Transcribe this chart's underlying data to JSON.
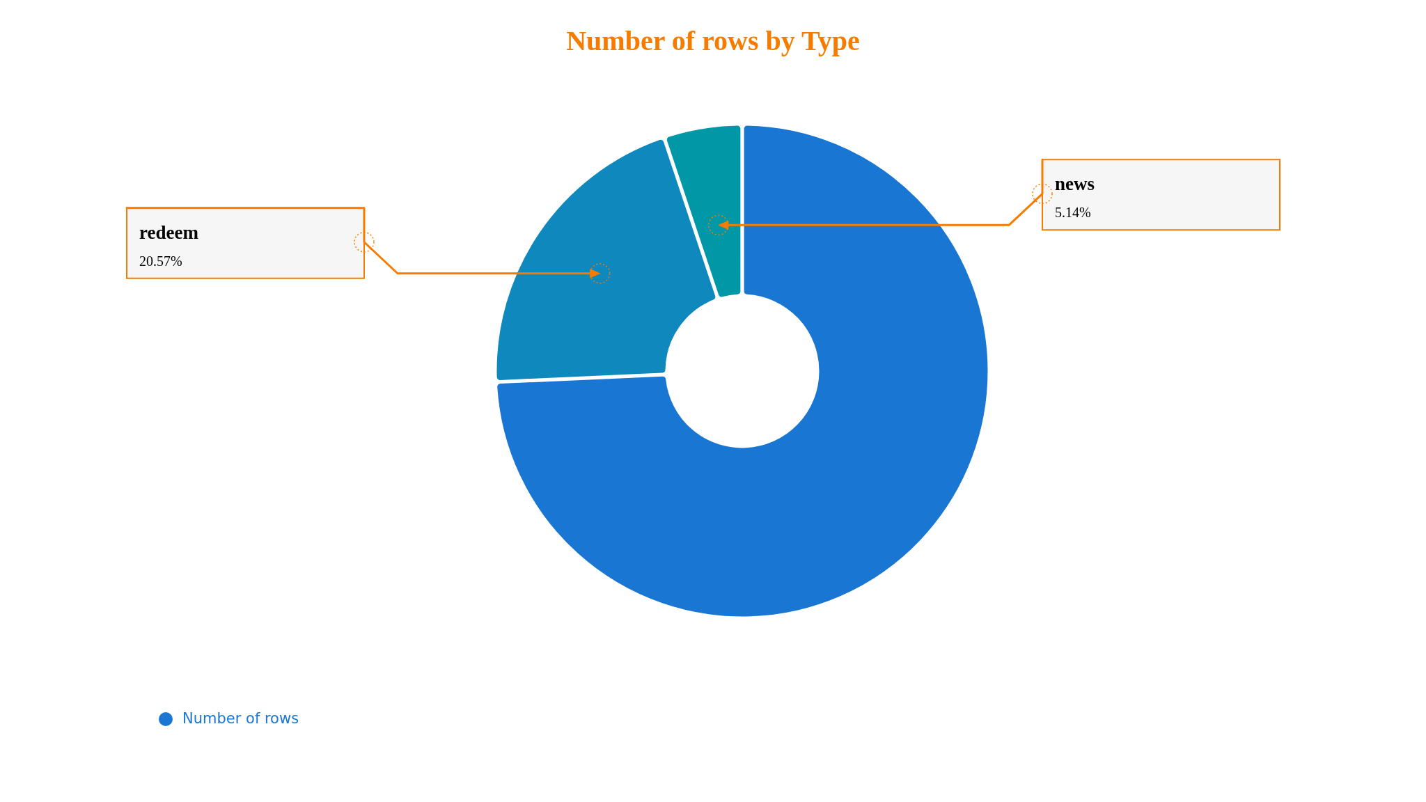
{
  "chart_data": {
    "type": "donut",
    "title": "Number of rows by Type",
    "categories": [
      null,
      "redeem",
      "news"
    ],
    "series": [
      {
        "name": "Number of rows",
        "color": "#1976d2",
        "colors": [
          "#1976d2",
          "#0e88bd",
          "#0097a7"
        ],
        "values": [
          74.29,
          20.57,
          5.14
        ],
        "value_labels": [
          null,
          "20.57%",
          "5.14%"
        ]
      }
    ],
    "legend": "bottom left"
  }
}
